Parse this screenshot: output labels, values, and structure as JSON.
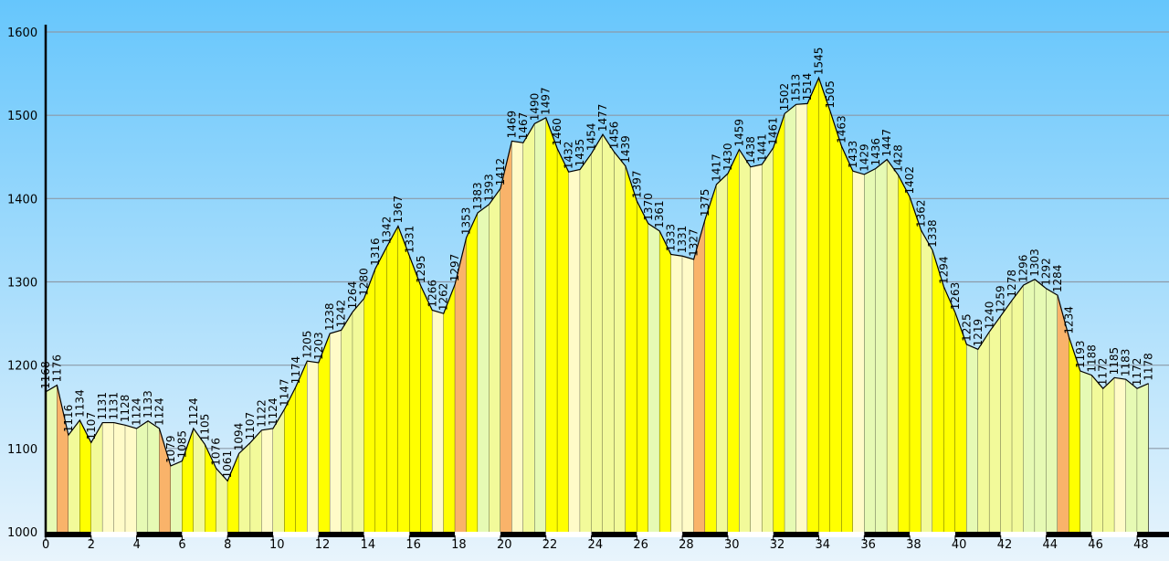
{
  "chart_data": {
    "type": "area",
    "title": "",
    "xlabel": "",
    "ylabel": "",
    "xlim": [
      0,
      49
    ],
    "ylim": [
      1000,
      1600
    ],
    "x_ticks": [
      0,
      2,
      4,
      6,
      8,
      10,
      12,
      14,
      16,
      18,
      20,
      22,
      24,
      26,
      28,
      30,
      32,
      34,
      36,
      38,
      40,
      42,
      44,
      46,
      48
    ],
    "y_ticks": [
      1000,
      1100,
      1200,
      1300,
      1400,
      1500,
      1600
    ],
    "grid": "horizontal",
    "colors": {
      "background_top": "#66c6fc",
      "background_bottom": "#e8f4fc",
      "steep": "#f9b36a",
      "strong": "#ffff00",
      "moderate": "#f2fa9a",
      "gentle": "#e6fab4",
      "flat": "#fffbc8",
      "grid": "#8c9aa8",
      "axis": "#000000"
    },
    "points": [
      {
        "x": 0.0,
        "y": 1168,
        "label": "1168"
      },
      {
        "x": 0.5,
        "y": 1176,
        "label": "1176"
      },
      {
        "x": 1.0,
        "y": 1116,
        "label": "1116"
      },
      {
        "x": 1.5,
        "y": 1134,
        "label": "1134"
      },
      {
        "x": 2.0,
        "y": 1107,
        "label": "1107"
      },
      {
        "x": 2.5,
        "y": 1131,
        "label": "1131"
      },
      {
        "x": 3.0,
        "y": 1131,
        "label": "1131"
      },
      {
        "x": 3.5,
        "y": 1128,
        "label": "1128"
      },
      {
        "x": 4.0,
        "y": 1124,
        "label": "1124"
      },
      {
        "x": 4.5,
        "y": 1133,
        "label": "1133"
      },
      {
        "x": 5.0,
        "y": 1124,
        "label": "1124"
      },
      {
        "x": 5.5,
        "y": 1079,
        "label": "1079"
      },
      {
        "x": 6.0,
        "y": 1085,
        "label": "1085"
      },
      {
        "x": 6.5,
        "y": 1124,
        "label": "1124"
      },
      {
        "x": 7.0,
        "y": 1105,
        "label": "1105"
      },
      {
        "x": 7.5,
        "y": 1076,
        "label": "1076"
      },
      {
        "x": 8.0,
        "y": 1061,
        "label": "1061"
      },
      {
        "x": 8.5,
        "y": 1094,
        "label": "1094"
      },
      {
        "x": 9.0,
        "y": 1107,
        "label": "1107"
      },
      {
        "x": 9.5,
        "y": 1122,
        "label": "1122"
      },
      {
        "x": 10.0,
        "y": 1124,
        "label": "1124"
      },
      {
        "x": 10.5,
        "y": 1147,
        "label": "1147"
      },
      {
        "x": 11.0,
        "y": 1174,
        "label": "1174"
      },
      {
        "x": 11.5,
        "y": 1205,
        "label": "1205"
      },
      {
        "x": 12.0,
        "y": 1203,
        "label": "1203"
      },
      {
        "x": 12.5,
        "y": 1238,
        "label": "1238"
      },
      {
        "x": 13.0,
        "y": 1242,
        "label": "1242"
      },
      {
        "x": 13.5,
        "y": 1264,
        "label": "1264"
      },
      {
        "x": 14.0,
        "y": 1280,
        "label": "1280"
      },
      {
        "x": 14.5,
        "y": 1316,
        "label": "1316"
      },
      {
        "x": 15.0,
        "y": 1342,
        "label": "1342"
      },
      {
        "x": 15.5,
        "y": 1367,
        "label": "1367"
      },
      {
        "x": 16.0,
        "y": 1331,
        "label": "1331"
      },
      {
        "x": 16.5,
        "y": 1295,
        "label": "1295"
      },
      {
        "x": 17.0,
        "y": 1266,
        "label": "1266"
      },
      {
        "x": 17.5,
        "y": 1262,
        "label": "1262"
      },
      {
        "x": 18.0,
        "y": 1297,
        "label": "1297"
      },
      {
        "x": 18.5,
        "y": 1353,
        "label": "1353"
      },
      {
        "x": 19.0,
        "y": 1383,
        "label": "1383"
      },
      {
        "x": 19.5,
        "y": 1393,
        "label": "1393"
      },
      {
        "x": 20.0,
        "y": 1412,
        "label": "1412"
      },
      {
        "x": 20.5,
        "y": 1469,
        "label": "1469"
      },
      {
        "x": 21.0,
        "y": 1467,
        "label": "1467"
      },
      {
        "x": 21.5,
        "y": 1490,
        "label": "1490"
      },
      {
        "x": 22.0,
        "y": 1497,
        "label": "1497"
      },
      {
        "x": 22.5,
        "y": 1460,
        "label": "1460"
      },
      {
        "x": 23.0,
        "y": 1432,
        "label": "1432"
      },
      {
        "x": 23.5,
        "y": 1435,
        "label": "1435"
      },
      {
        "x": 24.0,
        "y": 1454,
        "label": "1454"
      },
      {
        "x": 24.5,
        "y": 1477,
        "label": "1477"
      },
      {
        "x": 25.0,
        "y": 1456,
        "label": "1456"
      },
      {
        "x": 25.5,
        "y": 1439,
        "label": "1439"
      },
      {
        "x": 26.0,
        "y": 1397,
        "label": "1397"
      },
      {
        "x": 26.5,
        "y": 1370,
        "label": "1370"
      },
      {
        "x": 27.0,
        "y": 1361,
        "label": "1361"
      },
      {
        "x": 27.5,
        "y": 1333,
        "label": "1333"
      },
      {
        "x": 28.0,
        "y": 1331,
        "label": "1331"
      },
      {
        "x": 28.5,
        "y": 1327,
        "label": "1327"
      },
      {
        "x": 29.0,
        "y": 1375,
        "label": "1375"
      },
      {
        "x": 29.5,
        "y": 1417,
        "label": "1417"
      },
      {
        "x": 30.0,
        "y": 1430,
        "label": "1430"
      },
      {
        "x": 30.5,
        "y": 1459,
        "label": "1459"
      },
      {
        "x": 31.0,
        "y": 1438,
        "label": "1438"
      },
      {
        "x": 31.5,
        "y": 1441,
        "label": "1441"
      },
      {
        "x": 32.0,
        "y": 1461,
        "label": "1461"
      },
      {
        "x": 32.5,
        "y": 1502,
        "label": "1502"
      },
      {
        "x": 33.0,
        "y": 1513,
        "label": "1513"
      },
      {
        "x": 33.5,
        "y": 1514,
        "label": "1514"
      },
      {
        "x": 34.0,
        "y": 1545,
        "label": "1545"
      },
      {
        "x": 34.5,
        "y": 1505,
        "label": "1505"
      },
      {
        "x": 35.0,
        "y": 1463,
        "label": "1463"
      },
      {
        "x": 35.5,
        "y": 1433,
        "label": "1433"
      },
      {
        "x": 36.0,
        "y": 1429,
        "label": "1429"
      },
      {
        "x": 36.5,
        "y": 1436,
        "label": "1436"
      },
      {
        "x": 37.0,
        "y": 1447,
        "label": "1447"
      },
      {
        "x": 37.5,
        "y": 1428,
        "label": "1428"
      },
      {
        "x": 38.0,
        "y": 1402,
        "label": "1402"
      },
      {
        "x": 38.5,
        "y": 1362,
        "label": "1362"
      },
      {
        "x": 39.0,
        "y": 1338,
        "label": "1338"
      },
      {
        "x": 39.5,
        "y": 1294,
        "label": "1294"
      },
      {
        "x": 40.0,
        "y": 1263,
        "label": "1263"
      },
      {
        "x": 40.5,
        "y": 1225,
        "label": "1225"
      },
      {
        "x": 41.0,
        "y": 1219,
        "label": "1219"
      },
      {
        "x": 41.5,
        "y": 1240,
        "label": "1240"
      },
      {
        "x": 42.0,
        "y": 1259,
        "label": "1259"
      },
      {
        "x": 42.5,
        "y": 1278,
        "label": "1278"
      },
      {
        "x": 43.0,
        "y": 1296,
        "label": "1296"
      },
      {
        "x": 43.5,
        "y": 1303,
        "label": "1303"
      },
      {
        "x": 44.0,
        "y": 1292,
        "label": "1292"
      },
      {
        "x": 44.5,
        "y": 1284,
        "label": "1284"
      },
      {
        "x": 45.0,
        "y": 1234,
        "label": "1234"
      },
      {
        "x": 45.5,
        "y": 1193,
        "label": "1193"
      },
      {
        "x": 46.0,
        "y": 1188,
        "label": "1188"
      },
      {
        "x": 46.5,
        "y": 1172,
        "label": "1172"
      },
      {
        "x": 47.0,
        "y": 1185,
        "label": "1185"
      },
      {
        "x": 47.5,
        "y": 1183,
        "label": "1183"
      },
      {
        "x": 48.0,
        "y": 1172,
        "label": "1172"
      },
      {
        "x": 48.5,
        "y": 1178,
        "label": "1178"
      }
    ]
  }
}
